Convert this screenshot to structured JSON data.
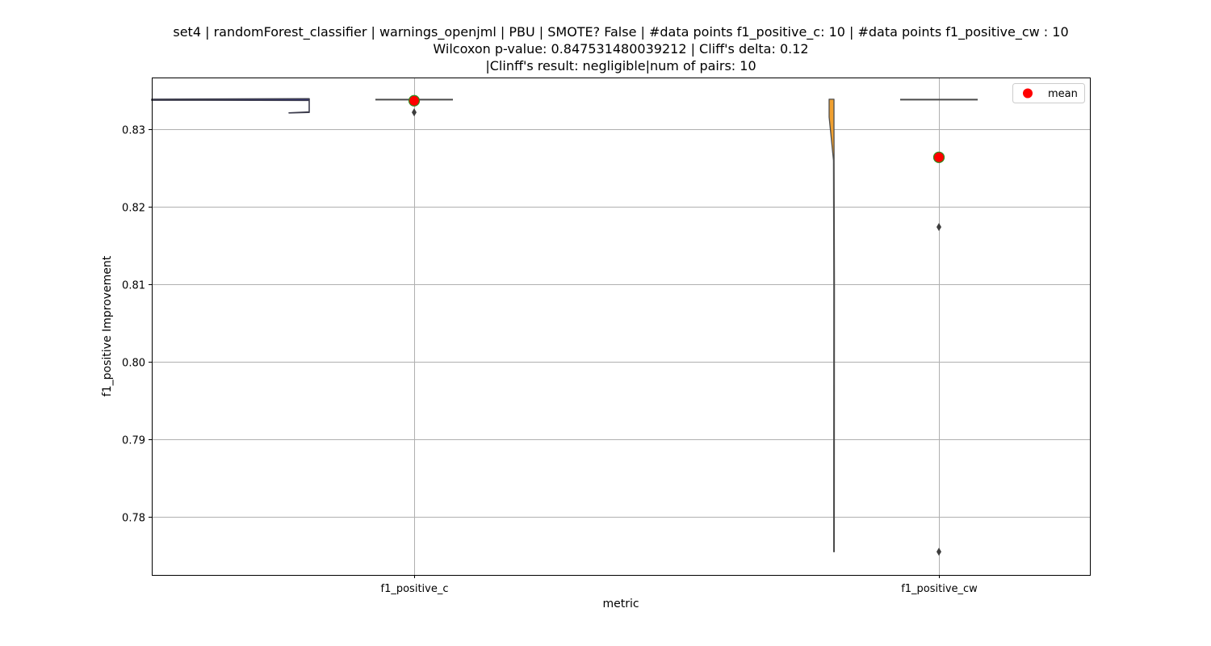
{
  "chart_data": {
    "type": "violin",
    "title_lines": [
      "set4 | randomForest_classifier | warnings_openjml | PBU | SMOTE? False | #data points f1_positive_c: 10 | #data points f1_positive_cw : 10",
      "Wilcoxon p-value: 0.847531480039212 | Cliff's delta: 0.12",
      "|Clinff's result: negligible|num of pairs: 10"
    ],
    "xlabel": "metric",
    "ylabel": "f1_positive Improvement",
    "ylim": [
      0.7725,
      0.8367
    ],
    "yticks": [
      0.78,
      0.79,
      0.8,
      0.81,
      0.82,
      0.83
    ],
    "ytick_labels": [
      "0.78",
      "0.79",
      "0.80",
      "0.81",
      "0.82",
      "0.83"
    ],
    "categories": [
      "f1_positive_c",
      "f1_positive_cw"
    ],
    "grid": true,
    "legend": {
      "placement": "top-right",
      "entries": [
        {
          "label": "mean",
          "color": "#ff0000"
        }
      ]
    },
    "series": [
      {
        "category": "f1_positive_c",
        "violin_color": "#2a2ab0",
        "violin_range": [
          0.8322,
          0.8339
        ],
        "box": {
          "q1": 0.8339,
          "median": 0.8339,
          "q3": 0.8339,
          "whisker_low": 0.8339,
          "whisker_high": 0.8339
        },
        "outliers": [
          0.8322
        ],
        "mean": 0.8337
      },
      {
        "category": "f1_positive_cw",
        "violin_color": "#f0a030",
        "violin_range": [
          0.7755,
          0.8339
        ],
        "box": {
          "q1": 0.8339,
          "median": 0.8339,
          "q3": 0.8339,
          "whisker_low": 0.8339,
          "whisker_high": 0.8339
        },
        "outliers": [
          0.8174,
          0.7755
        ],
        "mean": 0.8264
      }
    ],
    "mean_marker": {
      "fill": "#ff0000",
      "edge": "#2e8b20"
    }
  }
}
